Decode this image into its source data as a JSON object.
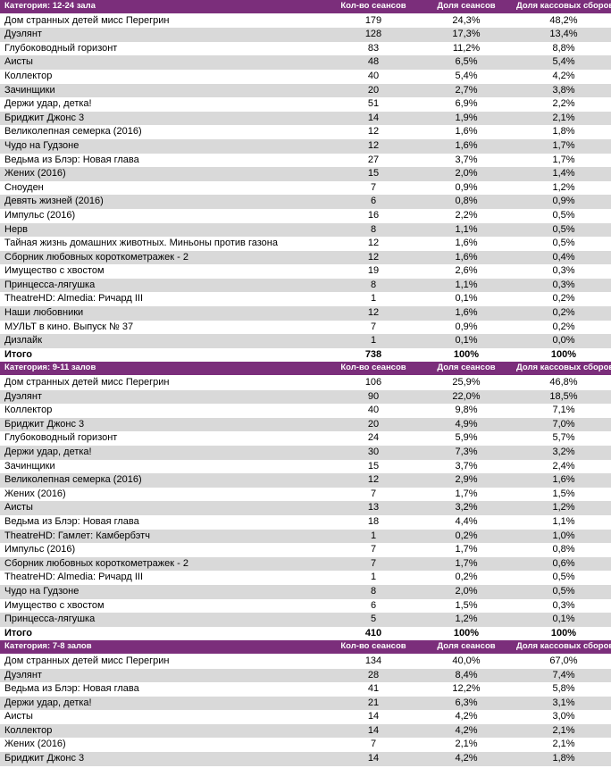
{
  "columns": [
    "Кол-во сеансов",
    "Доля сеансов",
    "Доля кассовых сборов"
  ],
  "colors": {
    "header_bg": "#7b2e7b",
    "stripe": "#d9d9d9"
  },
  "sections": [
    {
      "title": "Категория: 12-24 зала",
      "rows": [
        [
          "Дом странных детей мисс Перегрин",
          "179",
          "24,3%",
          "48,2%"
        ],
        [
          "Дуэлянт",
          "128",
          "17,3%",
          "13,4%"
        ],
        [
          "Глубоководный горизонт",
          "83",
          "11,2%",
          "8,8%"
        ],
        [
          "Аисты",
          "48",
          "6,5%",
          "5,4%"
        ],
        [
          "Коллектор",
          "40",
          "5,4%",
          "4,2%"
        ],
        [
          "Зачинщики",
          "20",
          "2,7%",
          "3,8%"
        ],
        [
          "Держи удар, детка!",
          "51",
          "6,9%",
          "2,2%"
        ],
        [
          "Бриджит Джонс 3",
          "14",
          "1,9%",
          "2,1%"
        ],
        [
          "Великолепная семерка (2016)",
          "12",
          "1,6%",
          "1,8%"
        ],
        [
          "Чудо на Гудзоне",
          "12",
          "1,6%",
          "1,7%"
        ],
        [
          "Ведьма из Блэр: Новая глава",
          "27",
          "3,7%",
          "1,7%"
        ],
        [
          "Жених (2016)",
          "15",
          "2,0%",
          "1,4%"
        ],
        [
          "Сноуден",
          "7",
          "0,9%",
          "1,2%"
        ],
        [
          "Девять жизней (2016)",
          "6",
          "0,8%",
          "0,9%"
        ],
        [
          "Импульс (2016)",
          "16",
          "2,2%",
          "0,5%"
        ],
        [
          "Нерв",
          "8",
          "1,1%",
          "0,5%"
        ],
        [
          "Тайная жизнь домашних животных. Миньоны против газона",
          "12",
          "1,6%",
          "0,5%"
        ],
        [
          "Сборник любовных короткометражек - 2",
          "12",
          "1,6%",
          "0,4%"
        ],
        [
          "Имущество с хвостом",
          "19",
          "2,6%",
          "0,3%"
        ],
        [
          "Принцесса-лягушка",
          "8",
          "1,1%",
          "0,3%"
        ],
        [
          "TheatreHD: Almedia: Ричард III",
          "1",
          "0,1%",
          "0,2%"
        ],
        [
          "Наши любовники",
          "12",
          "1,6%",
          "0,2%"
        ],
        [
          "МУЛЬТ в кино. Выпуск № 37",
          "7",
          "0,9%",
          "0,2%"
        ],
        [
          "Дизлайк",
          "1",
          "0,1%",
          "0,0%"
        ]
      ],
      "total": [
        "Итого",
        "738",
        "100%",
        "100%"
      ]
    },
    {
      "title": "Категория: 9-11 залов",
      "rows": [
        [
          "Дом странных детей мисс Перегрин",
          "106",
          "25,9%",
          "46,8%"
        ],
        [
          "Дуэлянт",
          "90",
          "22,0%",
          "18,5%"
        ],
        [
          "Коллектор",
          "40",
          "9,8%",
          "7,1%"
        ],
        [
          "Бриджит Джонс 3",
          "20",
          "4,9%",
          "7,0%"
        ],
        [
          "Глубоководный горизонт",
          "24",
          "5,9%",
          "5,7%"
        ],
        [
          "Держи удар, детка!",
          "30",
          "7,3%",
          "3,2%"
        ],
        [
          "Зачинщики",
          "15",
          "3,7%",
          "2,4%"
        ],
        [
          "Великолепная семерка (2016)",
          "12",
          "2,9%",
          "1,6%"
        ],
        [
          "Жених (2016)",
          "7",
          "1,7%",
          "1,5%"
        ],
        [
          "Аисты",
          "13",
          "3,2%",
          "1,2%"
        ],
        [
          "Ведьма из Блэр: Новая глава",
          "18",
          "4,4%",
          "1,1%"
        ],
        [
          "TheatreHD: Гамлет: Камбербэтч",
          "1",
          "0,2%",
          "1,0%"
        ],
        [
          "Импульс (2016)",
          "7",
          "1,7%",
          "0,8%"
        ],
        [
          "Сборник любовных короткометражек - 2",
          "7",
          "1,7%",
          "0,6%"
        ],
        [
          "TheatreHD: Almedia: Ричард III",
          "1",
          "0,2%",
          "0,5%"
        ],
        [
          "Чудо на Гудзоне",
          "8",
          "2,0%",
          "0,5%"
        ],
        [
          "Имущество с хвостом",
          "6",
          "1,5%",
          "0,3%"
        ],
        [
          "Принцесса-лягушка",
          "5",
          "1,2%",
          "0,1%"
        ]
      ],
      "total": [
        "Итого",
        "410",
        "100%",
        "100%"
      ]
    },
    {
      "title": "Категория: 7-8 залов",
      "rows": [
        [
          "Дом странных детей мисс Перегрин",
          "134",
          "40,0%",
          "67,0%"
        ],
        [
          "Дуэлянт",
          "28",
          "8,4%",
          "7,4%"
        ],
        [
          "Ведьма из Блэр: Новая глава",
          "41",
          "12,2%",
          "5,8%"
        ],
        [
          "Держи удар, детка!",
          "21",
          "6,3%",
          "3,1%"
        ],
        [
          "Аисты",
          "14",
          "4,2%",
          "3,0%"
        ],
        [
          "Коллектор",
          "14",
          "4,2%",
          "2,1%"
        ],
        [
          "Жених (2016)",
          "7",
          "2,1%",
          "2,1%"
        ],
        [
          "Бриджит Джонс 3",
          "14",
          "4,2%",
          "1,8%"
        ]
      ]
    }
  ]
}
